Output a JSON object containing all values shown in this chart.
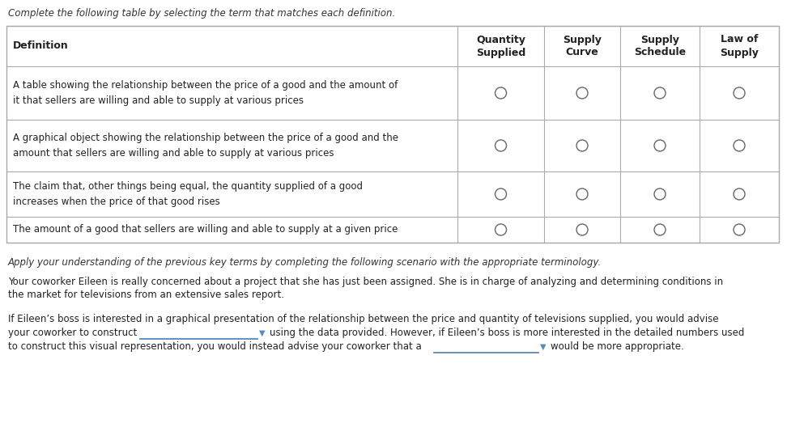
{
  "bg_color": "#ffffff",
  "border_color": "#aaaaaa",
  "text_color": "#222222",
  "italic_color": "#333333",
  "instruction_top": "Complete the following table by selecting the term that matches each definition.",
  "col_headers_right": [
    "Quantity\nSupplied",
    "Supply\nCurve",
    "Supply\nSchedule",
    "Law of\nSupply"
  ],
  "rows": [
    "A table showing the relationship between the price of a good and the amount of\nit that sellers are willing and able to supply at various prices",
    "A graphical object showing the relationship between the price of a good and the\namount that sellers are willing and able to supply at various prices",
    "The claim that, other things being equal, the quantity supplied of a good\nincreases when the price of that good rises",
    "The amount of a good that sellers are willing and able to supply at a given price"
  ],
  "instruction_mid": "Apply your understanding of the previous key terms by completing the following scenario with the appropriate terminology.",
  "paragraph1": "Your coworker Eileen is really concerned about a project that she has just been assigned. She is in charge of analyzing and determining conditions in",
  "paragraph2": "the market for televisions from an extensive sales report.",
  "sent1": "If Eileen’s boss is interested in a graphical presentation of the relationship between the price and quantity of televisions supplied, you would advise",
  "sent2a": "your coworker to construct",
  "sent2b": "using the data provided. However, if Eileen’s boss is more interested in the detailed numbers used",
  "sent3a": "to construct this visual representation, you would instead advise your coworker that a",
  "sent3b": "would be more appropriate.",
  "circle_color": "#666666",
  "dropdown_color": "#5588bb"
}
